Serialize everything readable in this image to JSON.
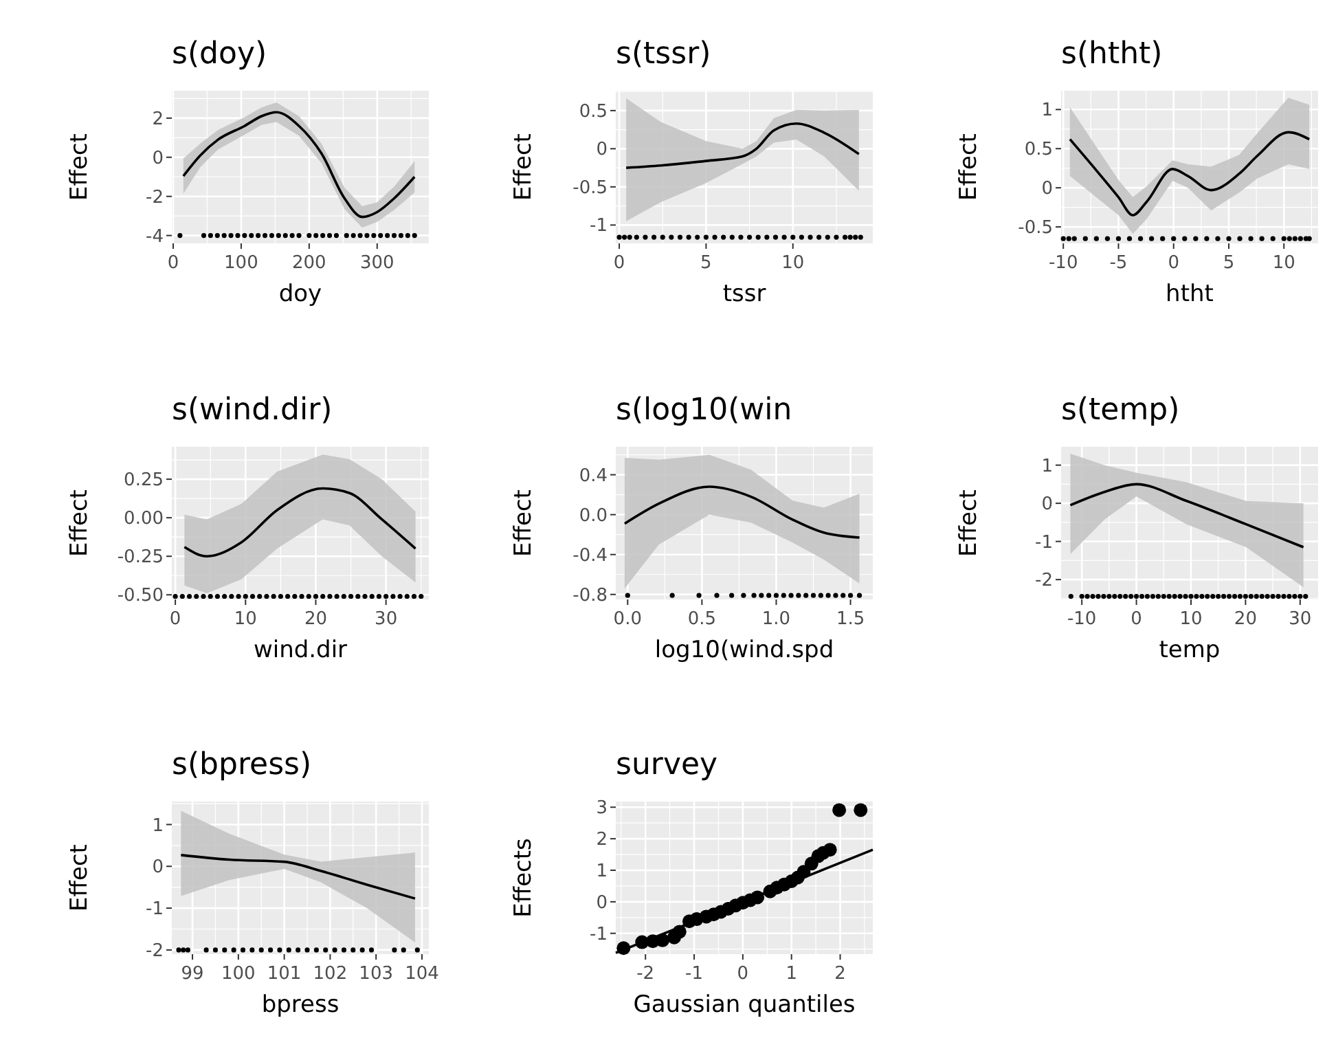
{
  "chart_data": [
    {
      "type": "line",
      "title": "s(doy)",
      "xlabel": "doy",
      "ylabel": "Effect",
      "xlim": [
        -2,
        376
      ],
      "ylim": [
        -4.4,
        3.4
      ],
      "xticks": [
        0,
        100,
        200,
        300
      ],
      "yticks": [
        -4,
        -2,
        0,
        2
      ],
      "grid": true,
      "series": [
        {
          "type": "line",
          "color": "#000000",
          "marker": "none",
          "x": [
            15,
            40,
            66,
            105,
            130,
            152,
            185,
            218,
            252,
            278,
            300,
            325,
            355
          ],
          "values": [
            -0.96,
            0.1,
            0.9,
            1.6,
            2.1,
            2.3,
            1.6,
            0.2,
            -2.1,
            -3.05,
            -2.8,
            -2.1,
            -1.0
          ],
          "lower": [
            -1.86,
            -0.5,
            0.4,
            1.15,
            1.65,
            1.8,
            1.1,
            -0.3,
            -2.65,
            -3.6,
            -3.3,
            -2.7,
            -1.8
          ],
          "upper": [
            -0.06,
            0.7,
            1.4,
            2.05,
            2.55,
            2.8,
            2.1,
            0.7,
            -1.55,
            -2.5,
            -2.3,
            -1.5,
            -0.2
          ]
        },
        {
          "type": "scatter",
          "color": "#000000",
          "marker": "circle",
          "x": [
            10,
            45,
            55,
            65,
            75,
            85,
            95,
            105,
            115,
            125,
            135,
            145,
            155,
            165,
            175,
            185,
            200,
            210,
            220,
            230,
            240,
            255,
            265,
            275,
            285,
            295,
            305,
            315,
            325,
            335,
            345,
            355
          ],
          "values": [
            -4,
            -4,
            -4,
            -4,
            -4,
            -4,
            -4,
            -4,
            -4,
            -4,
            -4,
            -4,
            -4,
            -4,
            -4,
            -4,
            -4,
            -4,
            -4,
            -4,
            -4,
            -4,
            -4,
            -4,
            -4,
            -4,
            -4,
            -4,
            -4,
            -4,
            -4,
            -4
          ]
        }
      ]
    },
    {
      "type": "line",
      "title": "s(tssr)",
      "xlabel": "tssr",
      "ylabel": "Effect",
      "xlim": [
        -0.2,
        14.6
      ],
      "ylim": [
        -1.24,
        0.76
      ],
      "xticks": [
        0,
        5,
        10
      ],
      "yticks": [
        -1.0,
        -0.5,
        0.0,
        0.5
      ],
      "grid": true,
      "series": [
        {
          "type": "line",
          "color": "#000000",
          "marker": "none",
          "x": [
            0.4,
            2.4,
            5,
            7.1,
            7.9,
            8.9,
            10.2,
            11.8,
            13.8
          ],
          "values": [
            -0.25,
            -0.22,
            -0.16,
            -0.1,
            0,
            0.24,
            0.33,
            0.21,
            -0.07
          ],
          "lower": [
            -0.95,
            -0.7,
            -0.45,
            -0.2,
            -0.1,
            0.08,
            0.12,
            -0.1,
            -0.55
          ],
          "upper": [
            0.66,
            0.35,
            0.1,
            0.0,
            0.1,
            0.4,
            0.51,
            0.5,
            0.51
          ]
        },
        {
          "type": "scatter",
          "color": "#000000",
          "marker": "circle",
          "x": [
            0,
            0.3,
            0.6,
            1,
            1.5,
            2,
            2.5,
            3,
            3.5,
            4,
            4.5,
            5,
            5.5,
            6,
            6.5,
            7,
            7.5,
            8,
            8.5,
            9,
            9.5,
            10,
            10.5,
            11,
            11.5,
            12,
            12.5,
            13,
            13.3,
            13.6,
            13.9
          ],
          "values": [
            -1.16,
            -1.16,
            -1.16,
            -1.16,
            -1.16,
            -1.16,
            -1.16,
            -1.16,
            -1.16,
            -1.16,
            -1.16,
            -1.16,
            -1.16,
            -1.16,
            -1.16,
            -1.16,
            -1.16,
            -1.16,
            -1.16,
            -1.16,
            -1.16,
            -1.16,
            -1.16,
            -1.16,
            -1.16,
            -1.16,
            -1.16,
            -1.16,
            -1.16,
            -1.16,
            -1.16
          ]
        }
      ]
    },
    {
      "type": "line",
      "title": "s(htht)",
      "xlabel": "htht",
      "ylabel": "Effect",
      "xlim": [
        -10.2,
        13.1
      ],
      "ylim": [
        -0.71,
        1.24
      ],
      "xticks": [
        -10,
        -5,
        0,
        5,
        10
      ],
      "yticks": [
        -0.5,
        0.0,
        0.5,
        1.0
      ],
      "grid": true,
      "series": [
        {
          "type": "line",
          "color": "#000000",
          "marker": "none",
          "x": [
            -9.4,
            -5,
            -3.7,
            -2.45,
            -0.1,
            1.3,
            3.4,
            5.95,
            7.6,
            10.4,
            12.3
          ],
          "values": [
            0.62,
            -0.12,
            -0.35,
            -0.18,
            0.24,
            0.15,
            -0.03,
            0.18,
            0.41,
            0.71,
            0.62
          ],
          "lower": [
            0.15,
            -0.35,
            -0.59,
            -0.4,
            0.09,
            0.0,
            -0.29,
            -0.06,
            0.12,
            0.3,
            0.24
          ],
          "upper": [
            1.03,
            0.1,
            -0.12,
            0.02,
            0.35,
            0.3,
            0.27,
            0.42,
            0.7,
            1.15,
            1.06
          ]
        },
        {
          "type": "scatter",
          "color": "#000000",
          "marker": "circle",
          "x": [
            -10,
            -9.5,
            -9,
            -8,
            -7,
            -6,
            -5,
            -4,
            -3,
            -2,
            -1,
            0,
            1,
            2,
            3,
            4,
            5,
            6,
            7,
            8,
            9,
            10,
            10.5,
            11,
            11.5,
            12,
            12.3
          ],
          "values": [
            -0.65,
            -0.65,
            -0.65,
            -0.65,
            -0.65,
            -0.65,
            -0.65,
            -0.65,
            -0.65,
            -0.65,
            -0.65,
            -0.65,
            -0.65,
            -0.65,
            -0.65,
            -0.65,
            -0.65,
            -0.65,
            -0.65,
            -0.65,
            -0.65,
            -0.65,
            -0.65,
            -0.65,
            -0.65,
            -0.65,
            -0.65
          ]
        }
      ]
    },
    {
      "type": "line",
      "title": "s(wind.dir)",
      "xlabel": "wind.dir",
      "ylabel": "Effect",
      "xlim": [
        -0.5,
        36.1
      ],
      "ylim": [
        -0.53,
        0.46
      ],
      "xticks": [
        0,
        10,
        20,
        30
      ],
      "yticks": [
        {
          "value": -0.5,
          "label": "-0.50"
        },
        {
          "value": -0.25,
          "label": "-0.25"
        },
        {
          "value": 0,
          "label": "0.00"
        },
        {
          "value": 0.25,
          "label": "0.25"
        }
      ],
      "grid": true,
      "series": [
        {
          "type": "line",
          "color": "#000000",
          "marker": "none",
          "x": [
            1.3,
            4.5,
            9.4,
            14.5,
            21,
            24.8,
            29.4,
            34.2
          ],
          "values": [
            -0.19,
            -0.25,
            -0.16,
            0.05,
            0.19,
            0.16,
            -0.01,
            -0.2
          ],
          "lower": [
            -0.44,
            -0.49,
            -0.4,
            -0.2,
            -0.01,
            -0.05,
            -0.25,
            -0.42
          ],
          "upper": [
            0.02,
            -0.01,
            0.09,
            0.3,
            0.41,
            0.38,
            0.25,
            0.04
          ]
        },
        {
          "type": "scatter",
          "color": "#000000",
          "marker": "circle",
          "x": [
            0,
            1,
            2,
            3,
            4,
            5,
            6,
            7,
            8,
            9,
            10,
            11,
            12,
            13,
            14,
            15,
            16,
            17,
            18,
            19,
            20,
            21,
            22,
            23,
            24,
            25,
            26,
            27,
            28,
            29,
            30,
            31,
            32,
            33,
            34,
            35
          ],
          "values": [
            -0.51,
            -0.51,
            -0.51,
            -0.51,
            -0.51,
            -0.51,
            -0.51,
            -0.51,
            -0.51,
            -0.51,
            -0.51,
            -0.51,
            -0.51,
            -0.51,
            -0.51,
            -0.51,
            -0.51,
            -0.51,
            -0.51,
            -0.51,
            -0.51,
            -0.51,
            -0.51,
            -0.51,
            -0.51,
            -0.51,
            -0.51,
            -0.51,
            -0.51,
            -0.51,
            -0.51,
            -0.51,
            -0.51,
            -0.51,
            -0.51,
            -0.51
          ]
        }
      ]
    },
    {
      "type": "line",
      "title": "s(log10(win",
      "xlabel": "log10(wind.spd",
      "ylabel": "Effect",
      "xlim": [
        -0.08,
        1.65
      ],
      "ylim": [
        -0.85,
        0.68
      ],
      "xticks": [
        {
          "value": 0,
          "label": "0.0"
        },
        0.5,
        {
          "value": 1,
          "label": "1.0"
        },
        1.5
      ],
      "yticks": [
        -0.8,
        -0.4,
        {
          "value": 0,
          "label": "0.0"
        },
        0.4
      ],
      "grid": true,
      "series": [
        {
          "type": "line",
          "color": "#000000",
          "marker": "none",
          "x": [
            -0.02,
            0.21,
            0.55,
            0.83,
            1.11,
            1.32,
            1.56
          ],
          "values": [
            -0.09,
            0.11,
            0.28,
            0.18,
            -0.05,
            -0.18,
            -0.23
          ],
          "lower": [
            -0.74,
            -0.3,
            0.0,
            -0.08,
            -0.28,
            -0.45,
            -0.69
          ],
          "upper": [
            0.57,
            0.55,
            0.6,
            0.45,
            0.14,
            0.07,
            0.21
          ]
        },
        {
          "type": "scatter",
          "color": "#000000",
          "marker": "circle",
          "x": [
            0,
            0.3,
            0.48,
            0.6,
            0.7,
            0.78,
            0.85,
            0.9,
            0.95,
            1.0,
            1.05,
            1.1,
            1.15,
            1.2,
            1.25,
            1.3,
            1.35,
            1.4,
            1.45,
            1.5,
            1.56
          ],
          "values": [
            -0.81,
            -0.81,
            -0.81,
            -0.81,
            -0.81,
            -0.81,
            -0.81,
            -0.81,
            -0.81,
            -0.81,
            -0.81,
            -0.81,
            -0.81,
            -0.81,
            -0.81,
            -0.81,
            -0.81,
            -0.81,
            -0.81,
            -0.81,
            -0.81
          ]
        }
      ]
    },
    {
      "type": "line",
      "title": "s(temp)",
      "xlabel": "temp",
      "ylabel": "Effect",
      "xlim": [
        -13.8,
        33.3
      ],
      "ylim": [
        -2.52,
        1.48
      ],
      "xticks": [
        -10,
        0,
        10,
        20,
        30
      ],
      "yticks": [
        -2,
        -1,
        0,
        1
      ],
      "grid": true,
      "series": [
        {
          "type": "line",
          "color": "#000000",
          "marker": "none",
          "x": [
            -12.1,
            -5.8,
            0,
            9.2,
            20.1,
            30.6
          ],
          "values": [
            -0.05,
            0.3,
            0.5,
            0.06,
            -0.55,
            -1.15
          ],
          "lower": [
            -1.33,
            -0.42,
            0.18,
            -0.55,
            -1.15,
            -2.2
          ],
          "upper": [
            1.3,
            1.0,
            0.8,
            0.55,
            0.06,
            0.0
          ]
        },
        {
          "type": "scatter",
          "color": "#000000",
          "marker": "circle",
          "x": [
            -12,
            -10,
            -9,
            -8,
            -7,
            -6,
            -5,
            -4,
            -3,
            -2,
            -1,
            0,
            1,
            2,
            3,
            4,
            5,
            6,
            7,
            8,
            9,
            10,
            11,
            12,
            13,
            14,
            15,
            16,
            17,
            18,
            19,
            20,
            21,
            22,
            23,
            24,
            25,
            26,
            27,
            28,
            29,
            30,
            31
          ],
          "values": [
            -2.44,
            -2.44,
            -2.44,
            -2.44,
            -2.44,
            -2.44,
            -2.44,
            -2.44,
            -2.44,
            -2.44,
            -2.44,
            -2.44,
            -2.44,
            -2.44,
            -2.44,
            -2.44,
            -2.44,
            -2.44,
            -2.44,
            -2.44,
            -2.44,
            -2.44,
            -2.44,
            -2.44,
            -2.44,
            -2.44,
            -2.44,
            -2.44,
            -2.44,
            -2.44,
            -2.44,
            -2.44,
            -2.44,
            -2.44,
            -2.44,
            -2.44,
            -2.44,
            -2.44,
            -2.44,
            -2.44,
            -2.44,
            -2.44,
            -2.44
          ]
        }
      ]
    },
    {
      "type": "line",
      "title": "s(bpress)",
      "xlabel": "bpress",
      "ylabel": "Effect",
      "xlim": [
        98.55,
        104.15
      ],
      "ylim": [
        -2.1,
        1.55
      ],
      "xticks": [
        99,
        100,
        101,
        102,
        103,
        104
      ],
      "yticks": [
        -2,
        -1,
        0,
        1
      ],
      "grid": true,
      "series": [
        {
          "type": "line",
          "color": "#000000",
          "marker": "none",
          "x": [
            98.75,
            99.8,
            101,
            101.8,
            102.8,
            103.85
          ],
          "values": [
            0.27,
            0.16,
            0.11,
            -0.11,
            -0.44,
            -0.77
          ],
          "lower": [
            -0.71,
            -0.33,
            -0.06,
            -0.38,
            -1.0,
            -1.82
          ],
          "upper": [
            1.33,
            0.78,
            0.28,
            0.11,
            0.22,
            0.33
          ]
        },
        {
          "type": "scatter",
          "color": "#000000",
          "marker": "circle",
          "x": [
            98.7,
            98.8,
            98.9,
            99.3,
            99.5,
            99.7,
            99.9,
            100.1,
            100.3,
            100.5,
            100.7,
            100.9,
            101.1,
            101.3,
            101.5,
            101.7,
            101.9,
            102.1,
            102.3,
            102.5,
            102.7,
            102.9,
            103.4,
            103.6,
            103.9
          ],
          "values": [
            -2,
            -2,
            -2,
            -2,
            -2,
            -2,
            -2,
            -2,
            -2,
            -2,
            -2,
            -2,
            -2,
            -2,
            -2,
            -2,
            -2,
            -2,
            -2,
            -2,
            -2,
            -2,
            -2,
            -2,
            -2
          ]
        }
      ]
    },
    {
      "type": "scatter",
      "title": "survey",
      "xlabel": "Gaussian quantiles",
      "ylabel": "Effects",
      "xlim": [
        -2.61,
        2.67
      ],
      "ylim": [
        -1.66,
        3.18
      ],
      "xticks": [
        -2,
        -1,
        0,
        1,
        2
      ],
      "yticks": [
        -1,
        0,
        1,
        2,
        3
      ],
      "grid": true,
      "series": [
        {
          "type": "scatter",
          "color": "#000000",
          "marker": "circle",
          "x": [
            -2.45,
            -2.07,
            -1.85,
            -1.65,
            -1.41,
            -1.3,
            -1.1,
            -0.95,
            -0.75,
            -0.6,
            -0.45,
            -0.3,
            -0.15,
            0,
            0.15,
            0.3,
            0.56,
            0.7,
            0.85,
            1.0,
            1.13,
            1.25,
            1.41,
            1.55,
            1.65,
            1.79,
            1.98,
            2.42
          ],
          "values": [
            -1.47,
            -1.28,
            -1.25,
            -1.22,
            -1.13,
            -0.95,
            -0.62,
            -0.55,
            -0.47,
            -0.4,
            -0.32,
            -0.22,
            -0.12,
            -0.03,
            0.05,
            0.14,
            0.33,
            0.45,
            0.55,
            0.65,
            0.77,
            0.95,
            1.21,
            1.45,
            1.55,
            1.65,
            2.91,
            2.91
          ]
        },
        {
          "type": "line",
          "color": "#000000",
          "marker": "none",
          "x": [
            -2.61,
            2.67
          ],
          "values": [
            -1.62,
            1.65
          ]
        }
      ]
    }
  ]
}
